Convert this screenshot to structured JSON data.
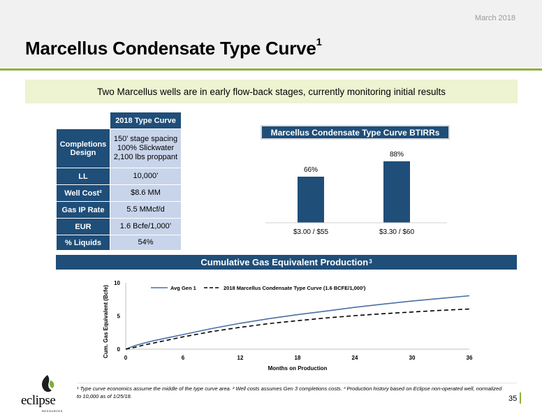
{
  "header": {
    "date": "March 2018",
    "title": "Marcellus Condensate Type Curve",
    "title_sup": "1"
  },
  "banner": "Two Marcellus wells are in early flow-back stages, currently monitoring initial results",
  "type_curve_table": {
    "column_header": "2018 Type Curve",
    "rows": [
      {
        "label": "Completions Design",
        "value_lines": [
          "150’ stage spacing",
          "100% Slickwater",
          "2,100 lbs proppant"
        ]
      },
      {
        "label": "LL",
        "value": "10,000’"
      },
      {
        "label": "Well Cost²",
        "value": "$8.6 MM"
      },
      {
        "label": "Gas IP Rate",
        "value": "5.5 MMcf/d"
      },
      {
        "label": "EUR",
        "value": "1.6 Bcfe/1,000’"
      },
      {
        "label": "% Liquids",
        "value": "54%"
      }
    ]
  },
  "colors": {
    "navy": "#1f4e79",
    "light_blue_cell": "#c8d4ea",
    "accent_green": "#8db03a",
    "banner_bg": "#eef3d1",
    "gen1_line": "#4a6fa5",
    "type_curve_line": "#000000"
  },
  "chart_data": [
    {
      "type": "bar",
      "title": "Marcellus Condensate Type Curve BTIRRs",
      "categories": [
        "$3.00 / $55",
        "$3.30 / $60"
      ],
      "values": [
        66,
        88
      ],
      "data_labels": [
        "66%",
        "88%"
      ]
    },
    {
      "type": "line",
      "title": "Cumulative Gas Equivalent Production",
      "title_sup": "3",
      "xlabel": "Months on Production",
      "ylabel": "Cum. Gas Equivalent (Bcfe)",
      "xlim": [
        0,
        36
      ],
      "ylim": [
        0,
        10
      ],
      "xticks": [
        "0",
        "6",
        "12",
        "18",
        "24",
        "30",
        "36"
      ],
      "yticks": [
        "0",
        "5",
        "10"
      ],
      "legend_position": "top",
      "series": [
        {
          "name": "Avg Gen 1",
          "style": "solid",
          "x": [
            0,
            0.5,
            1,
            2,
            3,
            4,
            6,
            9,
            12,
            15,
            18,
            21,
            24,
            27,
            30,
            33,
            36
          ],
          "y": [
            0,
            0.3,
            0.55,
            0.95,
            1.3,
            1.6,
            2.2,
            3.1,
            3.9,
            4.6,
            5.2,
            5.75,
            6.3,
            6.8,
            7.25,
            7.65,
            8.05
          ]
        },
        {
          "name": "2018 Marcellus Condensate Type Curve (1.6 BCFE/1,000')",
          "style": "dashed",
          "x": [
            0,
            1,
            2,
            3,
            4,
            6,
            9,
            12,
            15,
            18,
            21,
            24,
            27,
            30,
            33,
            36
          ],
          "y": [
            0,
            0.3,
            0.65,
            0.95,
            1.25,
            1.85,
            2.65,
            3.3,
            3.85,
            4.3,
            4.7,
            5.05,
            5.35,
            5.6,
            5.85,
            6.05
          ]
        }
      ]
    }
  ],
  "footnote": "¹ Type curve economics assume the middle of the type curve area.  ² Well costs assumes Gen 3 completions costs. ³ Production history based on Eclipse non-operated well, normalized to 10,000 as of 1/25/18.",
  "page_number": "35",
  "logo": {
    "word": "eclipse",
    "sub": "RESOURCES"
  }
}
